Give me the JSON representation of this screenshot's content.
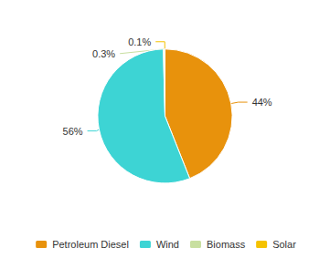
{
  "chart_data": {
    "type": "pie",
    "categories": [
      "Petroleum Diesel",
      "Wind",
      "Biomass",
      "Solar"
    ],
    "values": [
      44.0,
      55.6,
      0.3,
      0.1
    ],
    "value_labels": [
      "44%",
      "56%",
      "0.3%",
      "0.1%"
    ],
    "colors": [
      "#E8920C",
      "#3DD4D4",
      "#C8DFA0",
      "#F5C200"
    ],
    "data_labels": true,
    "legend": "bottom"
  }
}
